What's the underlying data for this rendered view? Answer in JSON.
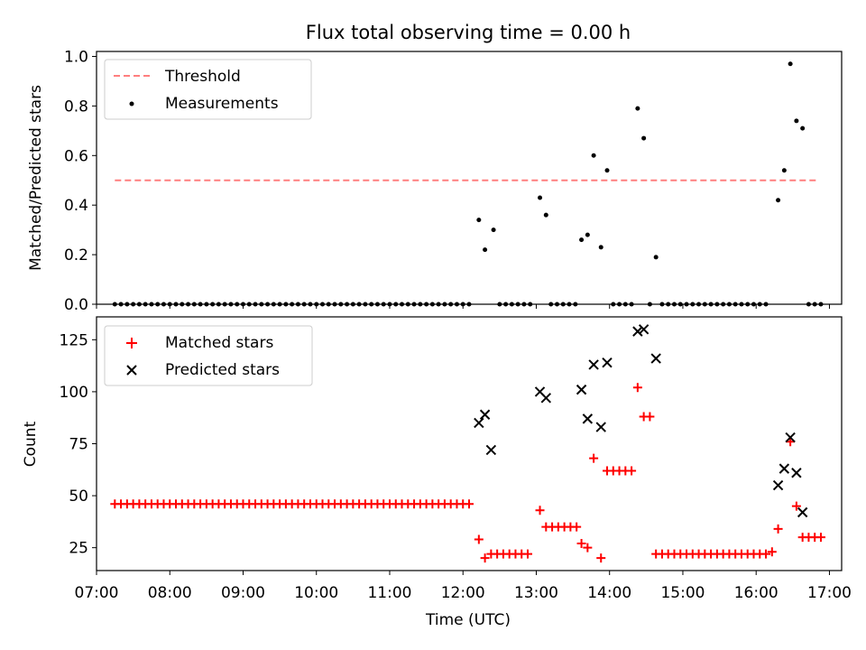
{
  "figure": {
    "title": "Flux total observing time = 0.00 h"
  },
  "chart_data": [
    {
      "type": "scatter",
      "ylabel": "Matched/Predicted stars",
      "xlim": [
        "07:00",
        "17:10"
      ],
      "ylim": [
        0,
        1.02
      ],
      "yticks": [
        "0.0",
        "0.2",
        "0.4",
        "0.6",
        "0.8",
        "1.0"
      ],
      "grid": false,
      "legend_position": "top-left",
      "threshold": {
        "name": "Threshold",
        "value": 0.5,
        "x_start": "07:15",
        "x_end": "16:50",
        "color": "#ff7f7f"
      },
      "series": [
        {
          "name": "Measurements",
          "color": "#000000",
          "points": [
            [
              "07:15",
              0
            ],
            [
              "07:20",
              0
            ],
            [
              "07:25",
              0
            ],
            [
              "07:30",
              0
            ],
            [
              "07:35",
              0
            ],
            [
              "07:40",
              0
            ],
            [
              "07:45",
              0
            ],
            [
              "07:50",
              0
            ],
            [
              "07:55",
              0
            ],
            [
              "08:00",
              0
            ],
            [
              "08:05",
              0
            ],
            [
              "08:10",
              0
            ],
            [
              "08:15",
              0
            ],
            [
              "08:20",
              0
            ],
            [
              "08:25",
              0
            ],
            [
              "08:30",
              0
            ],
            [
              "08:35",
              0
            ],
            [
              "08:40",
              0
            ],
            [
              "08:45",
              0
            ],
            [
              "08:50",
              0
            ],
            [
              "08:55",
              0
            ],
            [
              "09:00",
              0
            ],
            [
              "09:05",
              0
            ],
            [
              "09:10",
              0
            ],
            [
              "09:15",
              0
            ],
            [
              "09:20",
              0
            ],
            [
              "09:25",
              0
            ],
            [
              "09:30",
              0
            ],
            [
              "09:35",
              0
            ],
            [
              "09:40",
              0
            ],
            [
              "09:45",
              0
            ],
            [
              "09:50",
              0
            ],
            [
              "09:55",
              0
            ],
            [
              "10:00",
              0
            ],
            [
              "10:05",
              0
            ],
            [
              "10:10",
              0
            ],
            [
              "10:15",
              0
            ],
            [
              "10:20",
              0
            ],
            [
              "10:25",
              0
            ],
            [
              "10:30",
              0
            ],
            [
              "10:35",
              0
            ],
            [
              "10:40",
              0
            ],
            [
              "10:45",
              0
            ],
            [
              "10:50",
              0
            ],
            [
              "10:55",
              0
            ],
            [
              "11:00",
              0
            ],
            [
              "11:05",
              0
            ],
            [
              "11:10",
              0
            ],
            [
              "11:15",
              0
            ],
            [
              "11:20",
              0
            ],
            [
              "11:25",
              0
            ],
            [
              "11:30",
              0
            ],
            [
              "11:35",
              0
            ],
            [
              "11:40",
              0
            ],
            [
              "11:45",
              0
            ],
            [
              "11:50",
              0
            ],
            [
              "11:55",
              0
            ],
            [
              "12:00",
              0
            ],
            [
              "12:05",
              0
            ],
            [
              "12:13",
              0.34
            ],
            [
              "12:18",
              0.22
            ],
            [
              "12:25",
              0.3
            ],
            [
              "12:30",
              0
            ],
            [
              "12:35",
              0
            ],
            [
              "12:40",
              0
            ],
            [
              "12:45",
              0
            ],
            [
              "12:50",
              0
            ],
            [
              "12:55",
              0
            ],
            [
              "13:03",
              0.43
            ],
            [
              "13:08",
              0.36
            ],
            [
              "13:12",
              0
            ],
            [
              "13:17",
              0
            ],
            [
              "13:22",
              0
            ],
            [
              "13:27",
              0
            ],
            [
              "13:32",
              0
            ],
            [
              "13:37",
              0.26
            ],
            [
              "13:42",
              0.28
            ],
            [
              "13:47",
              0.6
            ],
            [
              "13:53",
              0.23
            ],
            [
              "13:58",
              0.54
            ],
            [
              "14:03",
              0
            ],
            [
              "14:08",
              0
            ],
            [
              "14:13",
              0
            ],
            [
              "14:18",
              0
            ],
            [
              "14:23",
              0.79
            ],
            [
              "14:28",
              0.67
            ],
            [
              "14:33",
              0
            ],
            [
              "14:38",
              0.19
            ],
            [
              "14:43",
              0
            ],
            [
              "14:48",
              0
            ],
            [
              "14:53",
              0
            ],
            [
              "14:58",
              0
            ],
            [
              "15:03",
              0
            ],
            [
              "15:08",
              0
            ],
            [
              "15:13",
              0
            ],
            [
              "15:18",
              0
            ],
            [
              "15:23",
              0
            ],
            [
              "15:28",
              0
            ],
            [
              "15:33",
              0
            ],
            [
              "15:38",
              0
            ],
            [
              "15:43",
              0
            ],
            [
              "15:48",
              0
            ],
            [
              "15:53",
              0
            ],
            [
              "15:58",
              0
            ],
            [
              "16:03",
              0
            ],
            [
              "16:08",
              0
            ],
            [
              "16:18",
              0.42
            ],
            [
              "16:23",
              0.54
            ],
            [
              "16:28",
              0.97
            ],
            [
              "16:33",
              0.74
            ],
            [
              "16:38",
              0.71
            ],
            [
              "16:43",
              0
            ],
            [
              "16:48",
              0
            ],
            [
              "16:53",
              0
            ]
          ]
        }
      ]
    },
    {
      "type": "scatter",
      "xlabel": "Time (UTC)",
      "ylabel": "Count",
      "xlim": [
        "07:00",
        "17:10"
      ],
      "ylim": [
        14,
        136
      ],
      "xticks": [
        "07:00",
        "08:00",
        "09:00",
        "10:00",
        "11:00",
        "12:00",
        "13:00",
        "14:00",
        "15:00",
        "16:00",
        "17:00"
      ],
      "yticks": [
        "25",
        "50",
        "75",
        "100",
        "125"
      ],
      "grid": false,
      "legend_position": "top-left",
      "series": [
        {
          "name": "Matched stars",
          "marker": "plus",
          "color": "#ff0000",
          "points": [
            [
              "07:15",
              46
            ],
            [
              "07:20",
              46
            ],
            [
              "07:25",
              46
            ],
            [
              "07:30",
              46
            ],
            [
              "07:35",
              46
            ],
            [
              "07:40",
              46
            ],
            [
              "07:45",
              46
            ],
            [
              "07:50",
              46
            ],
            [
              "07:55",
              46
            ],
            [
              "08:00",
              46
            ],
            [
              "08:05",
              46
            ],
            [
              "08:10",
              46
            ],
            [
              "08:15",
              46
            ],
            [
              "08:20",
              46
            ],
            [
              "08:25",
              46
            ],
            [
              "08:30",
              46
            ],
            [
              "08:35",
              46
            ],
            [
              "08:40",
              46
            ],
            [
              "08:45",
              46
            ],
            [
              "08:50",
              46
            ],
            [
              "08:55",
              46
            ],
            [
              "09:00",
              46
            ],
            [
              "09:05",
              46
            ],
            [
              "09:10",
              46
            ],
            [
              "09:15",
              46
            ],
            [
              "09:20",
              46
            ],
            [
              "09:25",
              46
            ],
            [
              "09:30",
              46
            ],
            [
              "09:35",
              46
            ],
            [
              "09:40",
              46
            ],
            [
              "09:45",
              46
            ],
            [
              "09:50",
              46
            ],
            [
              "09:55",
              46
            ],
            [
              "10:00",
              46
            ],
            [
              "10:05",
              46
            ],
            [
              "10:10",
              46
            ],
            [
              "10:15",
              46
            ],
            [
              "10:20",
              46
            ],
            [
              "10:25",
              46
            ],
            [
              "10:30",
              46
            ],
            [
              "10:35",
              46
            ],
            [
              "10:40",
              46
            ],
            [
              "10:45",
              46
            ],
            [
              "10:50",
              46
            ],
            [
              "10:55",
              46
            ],
            [
              "11:00",
              46
            ],
            [
              "11:05",
              46
            ],
            [
              "11:10",
              46
            ],
            [
              "11:15",
              46
            ],
            [
              "11:20",
              46
            ],
            [
              "11:25",
              46
            ],
            [
              "11:30",
              46
            ],
            [
              "11:35",
              46
            ],
            [
              "11:40",
              46
            ],
            [
              "11:45",
              46
            ],
            [
              "11:50",
              46
            ],
            [
              "11:55",
              46
            ],
            [
              "12:00",
              46
            ],
            [
              "12:05",
              46
            ],
            [
              "12:13",
              29
            ],
            [
              "12:18",
              20
            ],
            [
              "12:23",
              22
            ],
            [
              "12:28",
              22
            ],
            [
              "12:33",
              22
            ],
            [
              "12:38",
              22
            ],
            [
              "12:43",
              22
            ],
            [
              "12:48",
              22
            ],
            [
              "12:53",
              22
            ],
            [
              "13:03",
              43
            ],
            [
              "13:08",
              35
            ],
            [
              "13:13",
              35
            ],
            [
              "13:18",
              35
            ],
            [
              "13:23",
              35
            ],
            [
              "13:28",
              35
            ],
            [
              "13:33",
              35
            ],
            [
              "13:37",
              27
            ],
            [
              "13:42",
              25
            ],
            [
              "13:47",
              68
            ],
            [
              "13:53",
              20
            ],
            [
              "13:58",
              62
            ],
            [
              "14:03",
              62
            ],
            [
              "14:08",
              62
            ],
            [
              "14:13",
              62
            ],
            [
              "14:18",
              62
            ],
            [
              "14:23",
              102
            ],
            [
              "14:28",
              88
            ],
            [
              "14:33",
              88
            ],
            [
              "14:38",
              22
            ],
            [
              "14:43",
              22
            ],
            [
              "14:48",
              22
            ],
            [
              "14:53",
              22
            ],
            [
              "14:58",
              22
            ],
            [
              "15:03",
              22
            ],
            [
              "15:08",
              22
            ],
            [
              "15:13",
              22
            ],
            [
              "15:18",
              22
            ],
            [
              "15:23",
              22
            ],
            [
              "15:28",
              22
            ],
            [
              "15:33",
              22
            ],
            [
              "15:38",
              22
            ],
            [
              "15:43",
              22
            ],
            [
              "15:48",
              22
            ],
            [
              "15:53",
              22
            ],
            [
              "15:58",
              22
            ],
            [
              "16:03",
              22
            ],
            [
              "16:08",
              22
            ],
            [
              "16:13",
              23
            ],
            [
              "16:18",
              34
            ],
            [
              "16:28",
              76
            ],
            [
              "16:33",
              45
            ],
            [
              "16:38",
              30
            ],
            [
              "16:43",
              30
            ],
            [
              "16:48",
              30
            ],
            [
              "16:53",
              30
            ]
          ]
        },
        {
          "name": "Predicted stars",
          "marker": "x",
          "color": "#000000",
          "points": [
            [
              "12:13",
              85
            ],
            [
              "12:18",
              89
            ],
            [
              "12:23",
              72
            ],
            [
              "13:03",
              100
            ],
            [
              "13:08",
              97
            ],
            [
              "13:37",
              101
            ],
            [
              "13:42",
              87
            ],
            [
              "13:47",
              113
            ],
            [
              "13:53",
              83
            ],
            [
              "13:58",
              114
            ],
            [
              "14:23",
              129
            ],
            [
              "14:28",
              130
            ],
            [
              "14:38",
              116
            ],
            [
              "16:18",
              55
            ],
            [
              "16:23",
              63
            ],
            [
              "16:28",
              78
            ],
            [
              "16:33",
              61
            ],
            [
              "16:38",
              42
            ]
          ]
        }
      ]
    }
  ]
}
